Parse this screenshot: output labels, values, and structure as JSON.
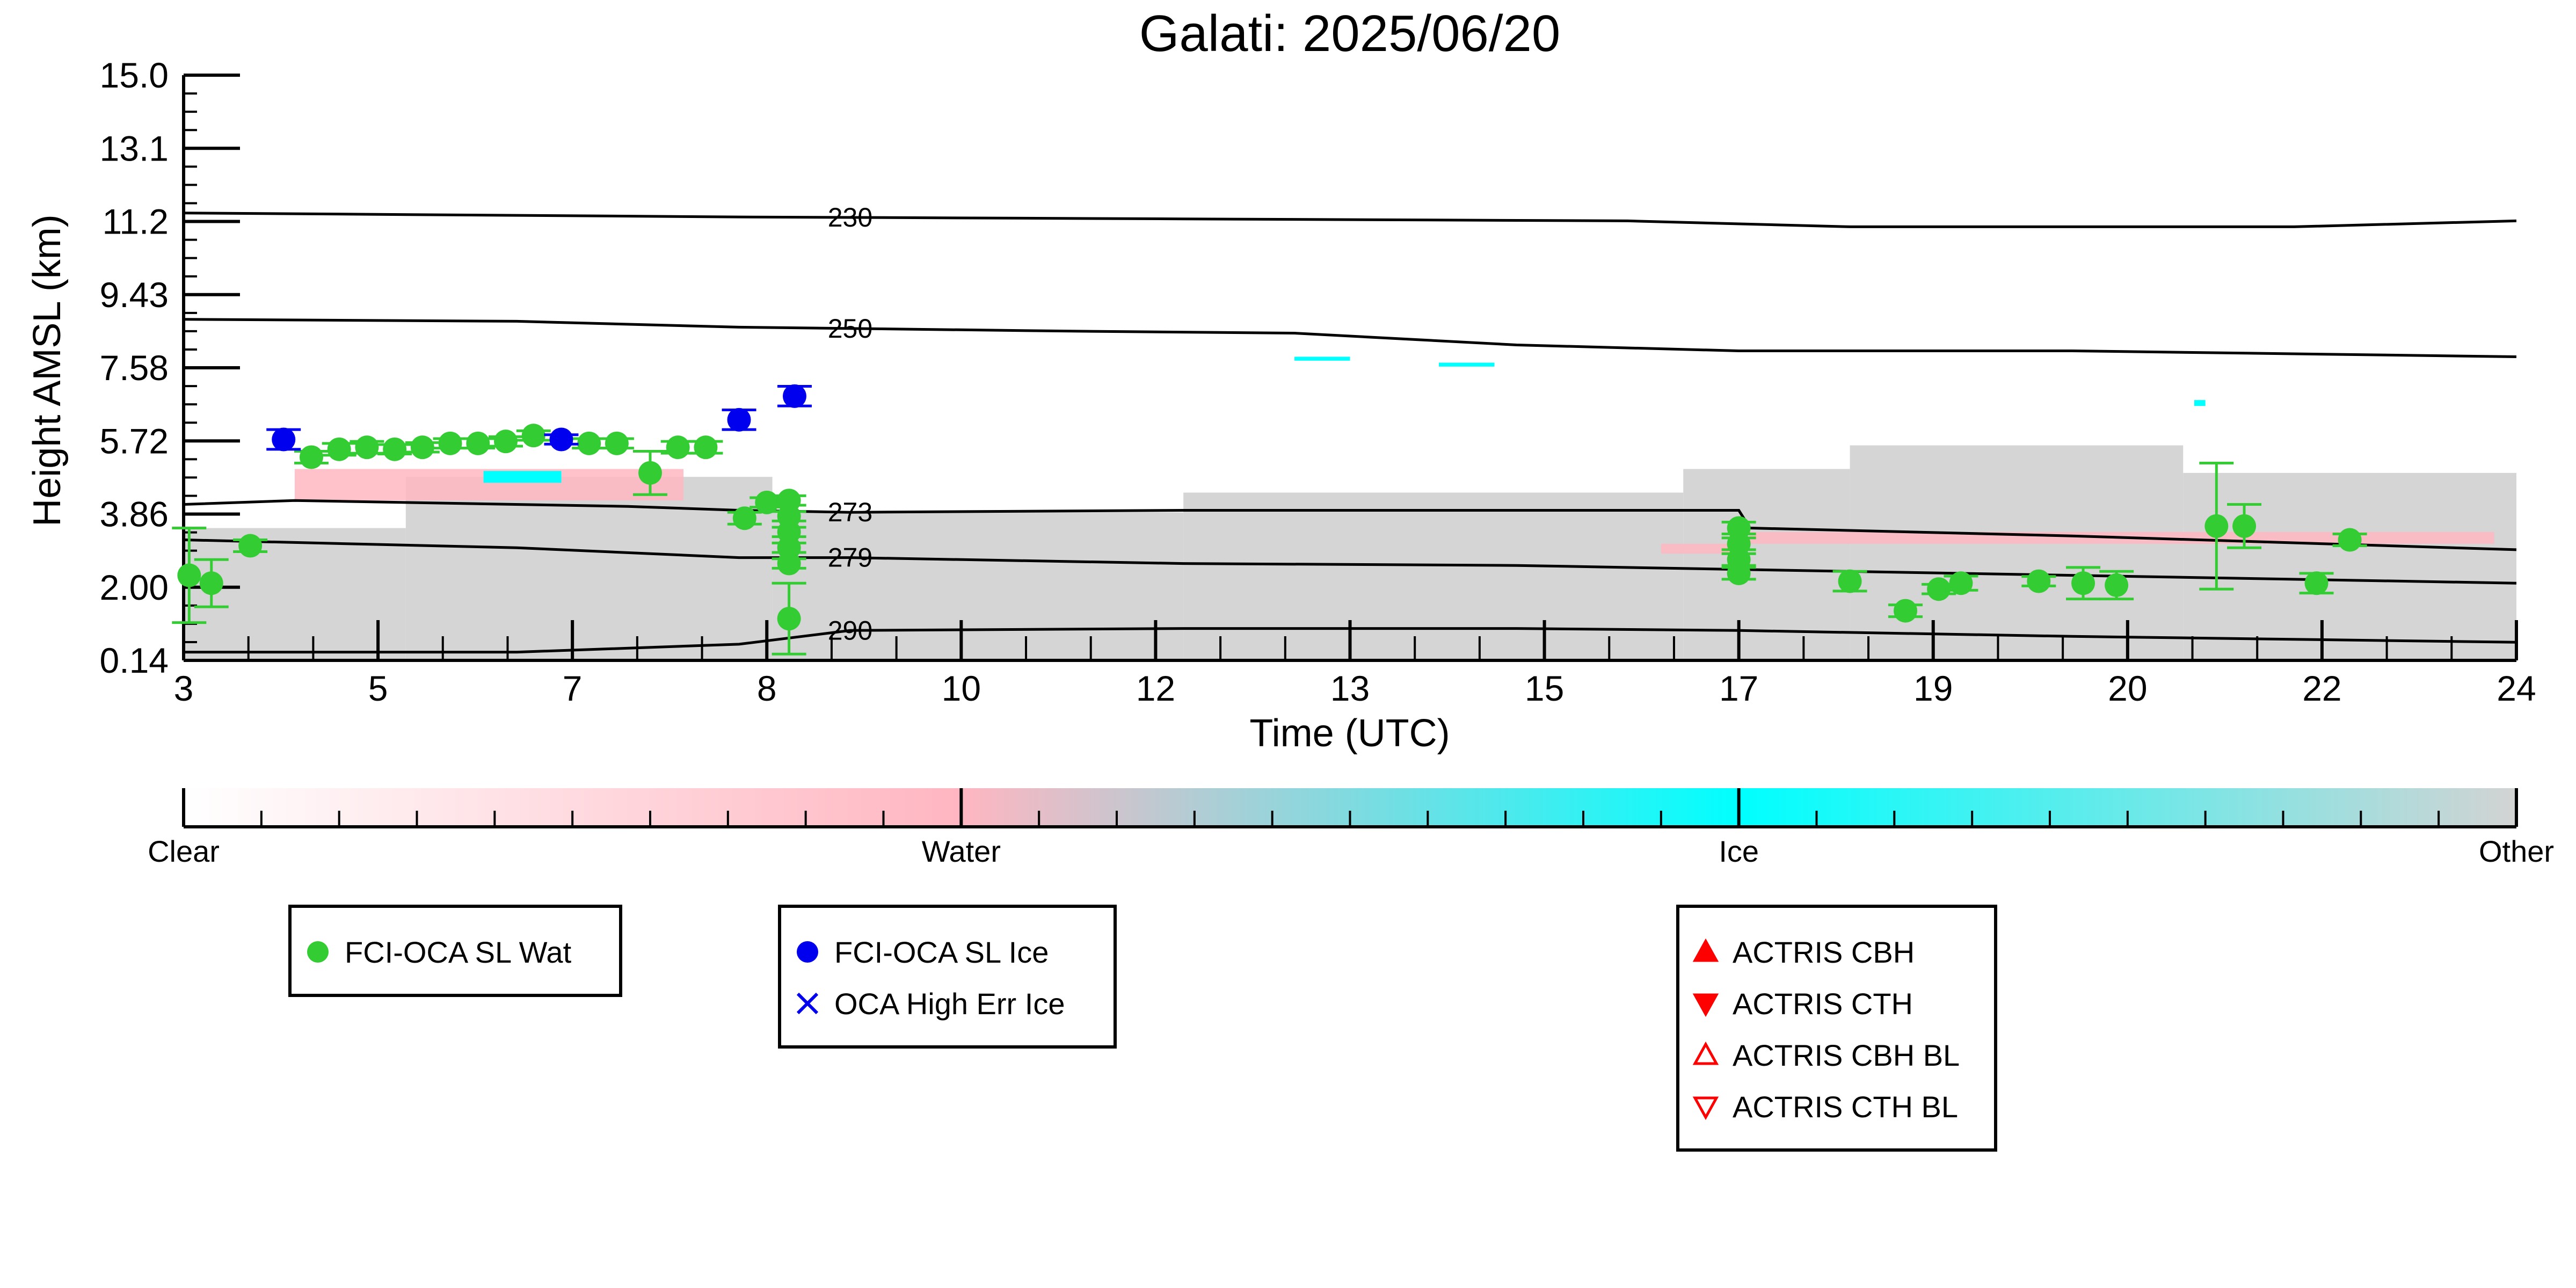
{
  "chart_data": {
    "type": "scatter",
    "title": "Galati: 2025/06/20",
    "xlabel": "Time (UTC)",
    "ylabel": "Height AMSL (km)",
    "xlim": [
      3,
      24
    ],
    "ylim": [
      0.14,
      15.0
    ],
    "x_tick_labels": [
      "3",
      "5",
      "7",
      "8",
      "10",
      "12",
      "13",
      "15",
      "17",
      "19",
      "20",
      "22",
      "24"
    ],
    "y_tick_labels": [
      "0.14",
      "2.00",
      "3.86",
      "5.72",
      "7.58",
      "9.43",
      "11.2",
      "13.1",
      "15.0"
    ],
    "colorbar": {
      "labels": [
        "Clear",
        "Water",
        "Ice",
        "Other"
      ],
      "colors": [
        "#ffffff",
        "#ffb6c1",
        "#00ffff",
        "#d3d3d3"
      ]
    },
    "contours": [
      {
        "label": "230",
        "points": [
          [
            3,
            11.5
          ],
          [
            8,
            11.4
          ],
          [
            12,
            11.35
          ],
          [
            16,
            11.3
          ],
          [
            18,
            11.15
          ],
          [
            22,
            11.15
          ],
          [
            24,
            11.3
          ]
        ]
      },
      {
        "label": "250",
        "points": [
          [
            3,
            8.8
          ],
          [
            6,
            8.75
          ],
          [
            8,
            8.6
          ],
          [
            11,
            8.5
          ],
          [
            13,
            8.45
          ],
          [
            15,
            8.15
          ],
          [
            17,
            8.0
          ],
          [
            20,
            8.0
          ],
          [
            24,
            7.85
          ]
        ]
      },
      {
        "label": "273",
        "points": [
          [
            3,
            4.1
          ],
          [
            4,
            4.2
          ],
          [
            7,
            4.05
          ],
          [
            8,
            3.95
          ],
          [
            9,
            3.9
          ],
          [
            12,
            3.95
          ],
          [
            15,
            3.95
          ],
          [
            17,
            3.95
          ],
          [
            17.1,
            3.5
          ],
          [
            20,
            3.3
          ],
          [
            24,
            2.95
          ]
        ]
      },
      {
        "label": "279",
        "points": [
          [
            3,
            3.2
          ],
          [
            6,
            3.0
          ],
          [
            8,
            2.75
          ],
          [
            9,
            2.75
          ],
          [
            12,
            2.6
          ],
          [
            15,
            2.55
          ],
          [
            17,
            2.45
          ],
          [
            20,
            2.3
          ],
          [
            24,
            2.1
          ]
        ]
      },
      {
        "label": "290",
        "points": [
          [
            3,
            0.35
          ],
          [
            6,
            0.35
          ],
          [
            8,
            0.55
          ],
          [
            9,
            0.9
          ],
          [
            12,
            0.95
          ],
          [
            15,
            0.95
          ],
          [
            17,
            0.9
          ],
          [
            20,
            0.75
          ],
          [
            24,
            0.6
          ]
        ]
      }
    ],
    "series": [
      {
        "name": "FCI-OCA SL Wat",
        "color": "#33cc33",
        "marker": "circle",
        "points": [
          {
            "x": 3.05,
            "y": 2.3,
            "err": 1.2
          },
          {
            "x": 3.25,
            "y": 2.1,
            "err": 0.6
          },
          {
            "x": 3.6,
            "y": 3.05,
            "err": 0.15
          },
          {
            "x": 4.15,
            "y": 5.3,
            "err": 0.15
          },
          {
            "x": 4.4,
            "y": 5.5,
            "err": 0.15
          },
          {
            "x": 4.65,
            "y": 5.55,
            "err": 0.15
          },
          {
            "x": 4.9,
            "y": 5.5,
            "err": 0.12
          },
          {
            "x": 5.15,
            "y": 5.55,
            "err": 0.12
          },
          {
            "x": 5.4,
            "y": 5.65,
            "err": 0.12
          },
          {
            "x": 5.65,
            "y": 5.65,
            "err": 0.12
          },
          {
            "x": 5.9,
            "y": 5.7,
            "err": 0.12
          },
          {
            "x": 6.15,
            "y": 5.85,
            "err": 0.12
          },
          {
            "x": 6.65,
            "y": 5.65,
            "err": 0.12
          },
          {
            "x": 6.9,
            "y": 5.65,
            "err": 0.12
          },
          {
            "x": 7.2,
            "y": 4.9,
            "err": 0.55
          },
          {
            "x": 7.45,
            "y": 5.55,
            "err": 0.15
          },
          {
            "x": 7.7,
            "y": 5.55,
            "err": 0.15
          },
          {
            "x": 8.05,
            "y": 3.75,
            "err": 0.15
          },
          {
            "x": 8.25,
            "y": 4.15,
            "err": 0.12
          },
          {
            "x": 8.45,
            "y": 4.2,
            "err": 0.12
          },
          {
            "x": 8.45,
            "y": 3.8,
            "err": 0.12
          },
          {
            "x": 8.45,
            "y": 3.4,
            "err": 0.12
          },
          {
            "x": 8.45,
            "y": 3.0,
            "err": 0.12
          },
          {
            "x": 8.45,
            "y": 2.6,
            "err": 0.12
          },
          {
            "x": 8.45,
            "y": 1.2,
            "err": 0.9
          },
          {
            "x": 17.0,
            "y": 3.5,
            "err": 0.15
          },
          {
            "x": 17.0,
            "y": 3.1,
            "err": 0.15
          },
          {
            "x": 17.0,
            "y": 2.7,
            "err": 0.15
          },
          {
            "x": 17.0,
            "y": 2.35,
            "err": 0.15
          },
          {
            "x": 18.0,
            "y": 2.15,
            "err": 0.25
          },
          {
            "x": 18.5,
            "y": 1.4,
            "err": 0.15
          },
          {
            "x": 18.8,
            "y": 1.95,
            "err": 0.12
          },
          {
            "x": 19.0,
            "y": 2.1,
            "err": 0.18
          },
          {
            "x": 19.7,
            "y": 2.15,
            "err": 0.12
          },
          {
            "x": 20.1,
            "y": 2.1,
            "err": 0.4
          },
          {
            "x": 20.4,
            "y": 2.05,
            "err": 0.35
          },
          {
            "x": 21.3,
            "y": 3.55,
            "err": 1.6
          },
          {
            "x": 21.55,
            "y": 3.55,
            "err": 0.55
          },
          {
            "x": 22.2,
            "y": 2.1,
            "err": 0.25
          },
          {
            "x": 22.5,
            "y": 3.2,
            "err": 0.15
          }
        ]
      },
      {
        "name": "FCI-OCA SL Ice",
        "color": "#0000ee",
        "marker": "circle",
        "points": [
          {
            "x": 3.9,
            "y": 5.75,
            "err": 0.25
          },
          {
            "x": 6.4,
            "y": 5.75,
            "err": 0.12
          },
          {
            "x": 8.0,
            "y": 6.25,
            "err": 0.25
          },
          {
            "x": 8.5,
            "y": 6.85,
            "err": 0.25
          }
        ]
      },
      {
        "name": "OCA High Err Ice",
        "color": "#0000ee",
        "marker": "x",
        "points": []
      },
      {
        "name": "ACTRIS CBH",
        "color": "#ff0000",
        "marker": "triangle-up-filled",
        "points": []
      },
      {
        "name": "ACTRIS CTH",
        "color": "#ff0000",
        "marker": "triangle-down-filled",
        "points": []
      },
      {
        "name": "ACTRIS CBH BL",
        "color": "#ff0000",
        "marker": "triangle-up-open",
        "points": []
      },
      {
        "name": "ACTRIS CTH BL",
        "color": "#ff0000",
        "marker": "triangle-down-open",
        "points": []
      }
    ],
    "legend_groups": [
      [
        "FCI-OCA SL Wat"
      ],
      [
        "FCI-OCA SL Ice",
        "OCA High Err Ice"
      ],
      [
        "ACTRIS CBH",
        "ACTRIS CTH",
        "ACTRIS CBH BL",
        "ACTRIS CTH BL"
      ]
    ],
    "cloud_mask": {
      "other_regions": [
        {
          "x0": 3.0,
          "x1": 5.0,
          "ytop": 3.5
        },
        {
          "x0": 5.0,
          "x1": 8.3,
          "ytop": 4.8
        },
        {
          "x0": 8.3,
          "x1": 12.0,
          "ytop": 3.9
        },
        {
          "x0": 12.0,
          "x1": 16.5,
          "ytop": 4.4
        },
        {
          "x0": 16.5,
          "x1": 18.0,
          "ytop": 5.0
        },
        {
          "x0": 18.0,
          "x1": 21.0,
          "ytop": 5.6
        },
        {
          "x0": 21.0,
          "x1": 24.0,
          "ytop": 4.9
        }
      ],
      "water_regions": [
        {
          "x0": 4.0,
          "x1": 7.5,
          "y0": 4.2,
          "y1": 5.0
        },
        {
          "x0": 16.3,
          "x1": 17.0,
          "y0": 2.85,
          "y1": 3.1
        },
        {
          "x0": 17.1,
          "x1": 23.8,
          "y0": 3.1,
          "y1": 3.4
        }
      ],
      "ice_regions": [
        {
          "x0": 5.7,
          "x1": 6.4,
          "y0": 4.65,
          "y1": 4.95
        },
        {
          "x0": 13.0,
          "x1": 13.5,
          "y0": 7.75,
          "y1": 7.85
        },
        {
          "x0": 14.3,
          "x1": 14.8,
          "y0": 7.6,
          "y1": 7.7
        },
        {
          "x0": 21.1,
          "x1": 21.2,
          "y0": 6.6,
          "y1": 6.75
        }
      ]
    }
  }
}
